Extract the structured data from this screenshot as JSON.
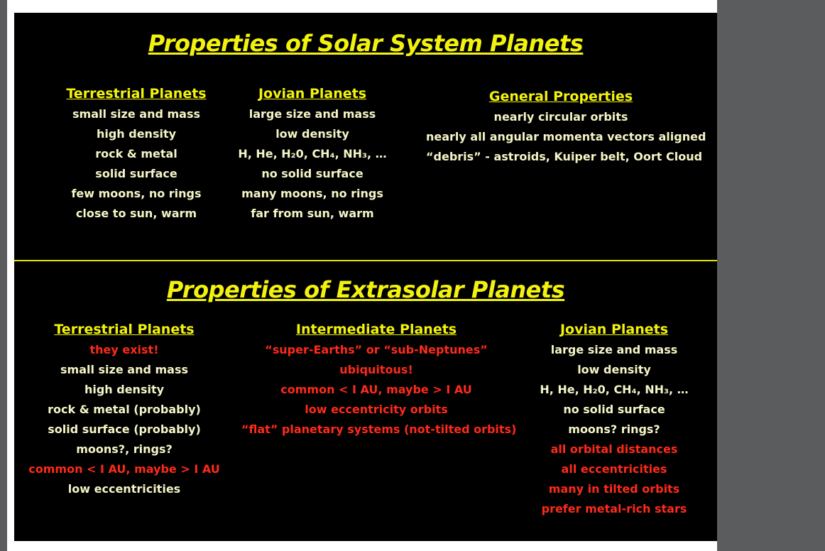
{
  "solar": {
    "title": "Properties of Solar System Planets",
    "terrestrial": {
      "heading": "Terrestrial Planets",
      "items": [
        "small size and mass",
        "high density",
        "rock & metal",
        "solid surface",
        "few moons, no rings",
        "close to sun, warm"
      ]
    },
    "jovian": {
      "heading": "Jovian Planets",
      "items": [
        "large size and mass",
        "low density",
        "H, He, H₂0, CH₄, NH₃, …",
        "no solid surface",
        "many moons, no rings",
        "far from sun, warm"
      ]
    },
    "general": {
      "heading": "General Properties",
      "items": [
        "nearly circular orbits",
        "nearly all angular momenta vectors aligned",
        "“debris” - astroids, Kuiper belt, Oort Cloud"
      ]
    }
  },
  "extrasolar": {
    "title": "Properties of Extrasolar Planets",
    "terrestrial": {
      "heading": "Terrestrial Planets",
      "items": [
        "they exist!",
        "small size and mass",
        "high density",
        "rock & metal (probably)",
        "solid surface (probably)",
        "moons?, rings?",
        "common < I AU, maybe > I AU",
        "low eccentricities"
      ]
    },
    "intermediate": {
      "heading": "Intermediate Planets",
      "items": [
        "“super-Earths” or “sub-Neptunes”",
        "ubiquitous!",
        "common < I AU, maybe > I AU",
        "low eccentricity orbits",
        "“flat” planetary systems (not-tilted orbits)"
      ]
    },
    "jovian": {
      "heading": "Jovian Planets",
      "items": [
        "large size and mass",
        "low density",
        "H, He, H₂0, CH₄, NH₃, …",
        "no solid surface",
        "moons?  rings?",
        "all orbital distances",
        "all eccentricities",
        "many in tilted orbits",
        "prefer metal-rich stars"
      ]
    }
  },
  "colors": {
    "title": "#f2f20e",
    "highlight": "#ff2a1a",
    "background": "#000000"
  }
}
